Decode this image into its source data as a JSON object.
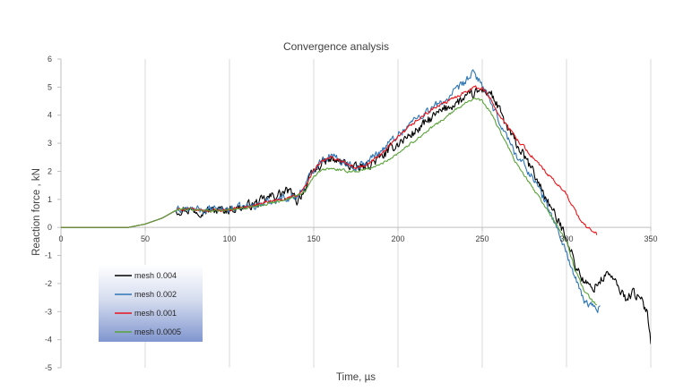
{
  "chart_data": {
    "type": "line",
    "title": "Convergence analysis",
    "xlabel": "Time, µs",
    "ylabel": "Reaction force , kN",
    "xlim": [
      0,
      350
    ],
    "ylim": [
      -5,
      6
    ],
    "x_ticks": [
      0,
      50,
      100,
      150,
      200,
      250,
      300,
      350
    ],
    "y_ticks": [
      -5,
      -4,
      -3,
      -2,
      -1,
      0,
      1,
      2,
      3,
      4,
      5,
      6
    ],
    "grid": {
      "vertical": true,
      "horizontal": false
    },
    "legend": {
      "placement": "lower-left inside plot",
      "background": "gradient white to blue"
    },
    "series": [
      {
        "name": "mesh 0.004",
        "color": "#000000",
        "points": [
          [
            0,
            0
          ],
          [
            40,
            0
          ],
          [
            50,
            0.12
          ],
          [
            60,
            0.33
          ],
          [
            68,
            0.6
          ],
          [
            72,
            0.65
          ],
          [
            80,
            0.62
          ],
          [
            90,
            0.6
          ],
          [
            100,
            0.65
          ],
          [
            110,
            0.75
          ],
          [
            118,
            0.9
          ],
          [
            125,
            1.1
          ],
          [
            130,
            1.2
          ],
          [
            135,
            1.3
          ],
          [
            140,
            0.95
          ],
          [
            145,
            1.4
          ],
          [
            150,
            2.0
          ],
          [
            155,
            2.3
          ],
          [
            160,
            2.4
          ],
          [
            165,
            2.35
          ],
          [
            170,
            2.25
          ],
          [
            175,
            2.1
          ],
          [
            180,
            2.15
          ],
          [
            190,
            2.5
          ],
          [
            200,
            3.0
          ],
          [
            210,
            3.4
          ],
          [
            220,
            3.9
          ],
          [
            230,
            4.3
          ],
          [
            240,
            4.6
          ],
          [
            245,
            4.75
          ],
          [
            250,
            4.9
          ],
          [
            255,
            4.8
          ],
          [
            260,
            4.2
          ],
          [
            265,
            3.5
          ],
          [
            270,
            3.0
          ],
          [
            280,
            2.0
          ],
          [
            290,
            0.8
          ],
          [
            295,
            0.2
          ],
          [
            300,
            -0.3
          ],
          [
            305,
            -1.3
          ],
          [
            310,
            -1.9
          ],
          [
            315,
            -2.2
          ],
          [
            320,
            -1.9
          ],
          [
            325,
            -1.6
          ],
          [
            330,
            -2.1
          ],
          [
            335,
            -2.5
          ],
          [
            340,
            -2.3
          ],
          [
            345,
            -2.7
          ],
          [
            348,
            -3.0
          ],
          [
            350,
            -4.0
          ]
        ],
        "noise": 0.15
      },
      {
        "name": "mesh 0.002",
        "color": "#2e75b6",
        "points": [
          [
            0,
            0
          ],
          [
            40,
            0
          ],
          [
            50,
            0.12
          ],
          [
            60,
            0.33
          ],
          [
            68,
            0.6
          ],
          [
            72,
            0.65
          ],
          [
            80,
            0.62
          ],
          [
            90,
            0.62
          ],
          [
            100,
            0.66
          ],
          [
            110,
            0.74
          ],
          [
            120,
            0.85
          ],
          [
            130,
            1.05
          ],
          [
            140,
            1.1
          ],
          [
            145,
            1.5
          ],
          [
            150,
            2.1
          ],
          [
            155,
            2.45
          ],
          [
            160,
            2.55
          ],
          [
            165,
            2.4
          ],
          [
            170,
            2.3
          ],
          [
            175,
            2.15
          ],
          [
            180,
            2.25
          ],
          [
            190,
            2.75
          ],
          [
            200,
            3.3
          ],
          [
            210,
            3.85
          ],
          [
            220,
            4.25
          ],
          [
            230,
            4.6
          ],
          [
            240,
            5.2
          ],
          [
            245,
            5.5
          ],
          [
            250,
            5.1
          ],
          [
            255,
            4.4
          ],
          [
            260,
            3.8
          ],
          [
            270,
            2.6
          ],
          [
            280,
            1.8
          ],
          [
            290,
            0.6
          ],
          [
            300,
            -0.9
          ],
          [
            305,
            -1.8
          ],
          [
            310,
            -2.6
          ],
          [
            315,
            -2.8
          ],
          [
            320,
            -2.9
          ]
        ],
        "noise": 0.12
      },
      {
        "name": "mesh 0.001",
        "color": "#e8151b",
        "points": [
          [
            0,
            0
          ],
          [
            40,
            0
          ],
          [
            50,
            0.12
          ],
          [
            60,
            0.33
          ],
          [
            68,
            0.6
          ],
          [
            72,
            0.66
          ],
          [
            80,
            0.62
          ],
          [
            90,
            0.6
          ],
          [
            100,
            0.64
          ],
          [
            110,
            0.72
          ],
          [
            120,
            0.85
          ],
          [
            130,
            1.0
          ],
          [
            140,
            1.1
          ],
          [
            145,
            1.45
          ],
          [
            150,
            2.05
          ],
          [
            155,
            2.35
          ],
          [
            160,
            2.5
          ],
          [
            165,
            2.4
          ],
          [
            170,
            2.25
          ],
          [
            175,
            2.1
          ],
          [
            180,
            2.2
          ],
          [
            190,
            2.6
          ],
          [
            200,
            3.2
          ],
          [
            210,
            3.75
          ],
          [
            220,
            4.2
          ],
          [
            230,
            4.5
          ],
          [
            240,
            4.85
          ],
          [
            245,
            5.0
          ],
          [
            250,
            4.95
          ],
          [
            255,
            4.6
          ],
          [
            260,
            4.0
          ],
          [
            270,
            3.2
          ],
          [
            280,
            2.5
          ],
          [
            290,
            1.8
          ],
          [
            300,
            1.2
          ],
          [
            305,
            0.6
          ],
          [
            310,
            0.1
          ],
          [
            315,
            -0.1
          ],
          [
            318,
            -0.25
          ]
        ],
        "noise": 0.05
      },
      {
        "name": "mesh 0.0005",
        "color": "#59a338",
        "points": [
          [
            0,
            0
          ],
          [
            40,
            0
          ],
          [
            50,
            0.12
          ],
          [
            60,
            0.33
          ],
          [
            68,
            0.6
          ],
          [
            72,
            0.66
          ],
          [
            80,
            0.62
          ],
          [
            90,
            0.6
          ],
          [
            100,
            0.63
          ],
          [
            110,
            0.7
          ],
          [
            120,
            0.82
          ],
          [
            130,
            0.95
          ],
          [
            140,
            1.1
          ],
          [
            145,
            1.3
          ],
          [
            150,
            1.8
          ],
          [
            155,
            2.05
          ],
          [
            160,
            2.1
          ],
          [
            165,
            2.05
          ],
          [
            170,
            2.0
          ],
          [
            175,
            2.0
          ],
          [
            180,
            2.05
          ],
          [
            190,
            2.25
          ],
          [
            200,
            2.65
          ],
          [
            210,
            3.1
          ],
          [
            220,
            3.55
          ],
          [
            230,
            4.0
          ],
          [
            240,
            4.45
          ],
          [
            245,
            4.6
          ],
          [
            250,
            4.5
          ],
          [
            255,
            4.1
          ],
          [
            260,
            3.5
          ],
          [
            270,
            2.3
          ],
          [
            280,
            1.4
          ],
          [
            290,
            0.5
          ],
          [
            300,
            -0.5
          ],
          [
            305,
            -1.5
          ],
          [
            310,
            -2.2
          ],
          [
            315,
            -2.6
          ],
          [
            318,
            -2.8
          ]
        ],
        "noise": 0.04
      }
    ]
  }
}
